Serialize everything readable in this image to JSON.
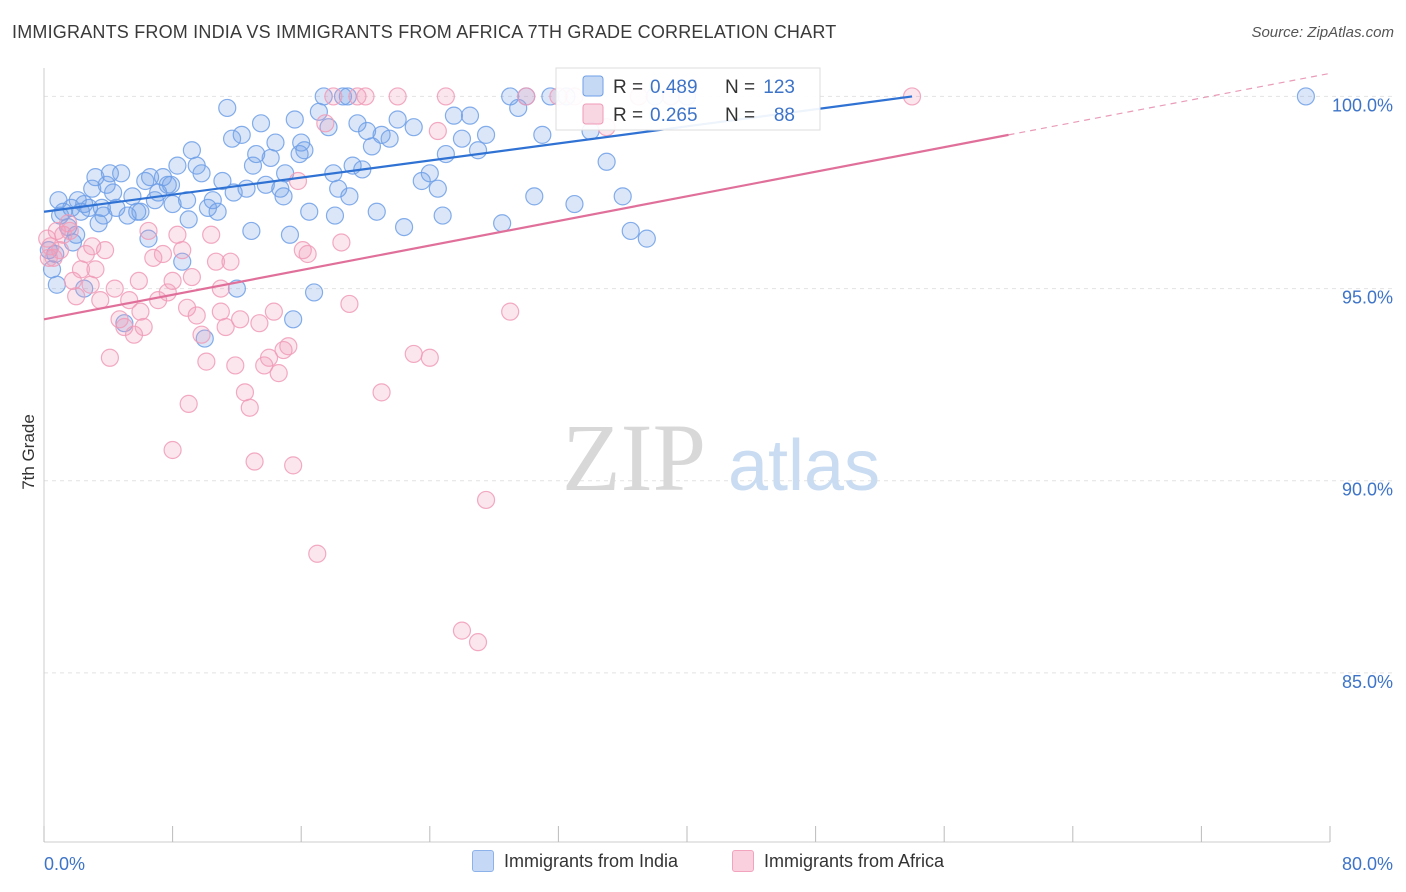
{
  "title": "IMMIGRANTS FROM INDIA VS IMMIGRANTS FROM AFRICA 7TH GRADE CORRELATION CHART",
  "source": "Source: ZipAtlas.com",
  "watermark": {
    "zip": "ZIP",
    "atlas": "atlas"
  },
  "chart_data": {
    "type": "scatter",
    "ylabel": "7th Grade",
    "xlim": [
      0,
      80
    ],
    "ylim": [
      80.6,
      101.0
    ],
    "x_tick_labels": [
      "0.0%",
      "80.0%"
    ],
    "y_ticks": [
      {
        "value": 100,
        "label": "100.0%"
      },
      {
        "value": 95,
        "label": "95.0%"
      },
      {
        "value": 90,
        "label": "90.0%"
      },
      {
        "value": 85,
        "label": "85.0%"
      }
    ],
    "grid": true,
    "legend_position": "bottom",
    "stats": [
      {
        "r_label": "R =",
        "r_value": "0.489",
        "n_label": "N =",
        "n_value": "123"
      },
      {
        "r_label": "R =",
        "r_value": "0.265",
        "n_label": "N =",
        "n_value": "88"
      }
    ],
    "series": [
      {
        "name": "Immigrants from India",
        "color": "#6f9fe6",
        "line_color": "#2f72d4",
        "trend": {
          "x0": 0,
          "y0": 97.0,
          "x1": 54,
          "y1": 100.0,
          "dash_to_x": 54
        },
        "points": [
          [
            0.3,
            96.0
          ],
          [
            0.5,
            95.5
          ],
          [
            0.7,
            95.9
          ],
          [
            0.8,
            95.1
          ],
          [
            1.0,
            96.9
          ],
          [
            1.2,
            97.0
          ],
          [
            1.5,
            96.6
          ],
          [
            1.7,
            97.1
          ],
          [
            2.0,
            96.4
          ],
          [
            2.1,
            97.3
          ],
          [
            2.3,
            97.0
          ],
          [
            2.5,
            97.2
          ],
          [
            2.8,
            97.1
          ],
          [
            3.0,
            97.6
          ],
          [
            3.2,
            97.9
          ],
          [
            3.4,
            96.7
          ],
          [
            3.6,
            97.1
          ],
          [
            3.9,
            97.7
          ],
          [
            4.1,
            98.0
          ],
          [
            4.3,
            97.5
          ],
          [
            4.5,
            97.1
          ],
          [
            4.8,
            98.0
          ],
          [
            5.2,
            96.9
          ],
          [
            5.5,
            97.4
          ],
          [
            5.8,
            97.0
          ],
          [
            6.0,
            97.0
          ],
          [
            6.3,
            97.8
          ],
          [
            6.6,
            97.9
          ],
          [
            6.9,
            97.3
          ],
          [
            7.1,
            97.5
          ],
          [
            7.4,
            97.9
          ],
          [
            7.7,
            97.7
          ],
          [
            8.0,
            97.2
          ],
          [
            8.3,
            98.2
          ],
          [
            8.6,
            95.7
          ],
          [
            8.9,
            97.3
          ],
          [
            9.2,
            98.6
          ],
          [
            9.5,
            98.2
          ],
          [
            9.8,
            98.0
          ],
          [
            10.2,
            97.1
          ],
          [
            10.5,
            97.3
          ],
          [
            10.8,
            97.0
          ],
          [
            11.1,
            97.8
          ],
          [
            11.4,
            99.7
          ],
          [
            11.7,
            98.9
          ],
          [
            12.0,
            95.0
          ],
          [
            12.3,
            99.0
          ],
          [
            12.6,
            97.6
          ],
          [
            12.9,
            96.5
          ],
          [
            13.2,
            98.5
          ],
          [
            13.5,
            99.3
          ],
          [
            13.8,
            97.7
          ],
          [
            14.1,
            98.4
          ],
          [
            14.4,
            98.8
          ],
          [
            14.7,
            97.6
          ],
          [
            15.0,
            98.0
          ],
          [
            15.3,
            96.4
          ],
          [
            15.6,
            99.4
          ],
          [
            15.9,
            98.5
          ],
          [
            16.2,
            98.6
          ],
          [
            16.5,
            97.0
          ],
          [
            16.8,
            94.9
          ],
          [
            17.1,
            99.6
          ],
          [
            17.4,
            100.0
          ],
          [
            17.7,
            99.2
          ],
          [
            18.0,
            98.0
          ],
          [
            18.3,
            97.6
          ],
          [
            18.6,
            100.0
          ],
          [
            18.9,
            100.0
          ],
          [
            19.2,
            98.2
          ],
          [
            19.5,
            99.3
          ],
          [
            19.8,
            98.1
          ],
          [
            20.1,
            99.1
          ],
          [
            20.4,
            98.7
          ],
          [
            20.7,
            97.0
          ],
          [
            21.0,
            99.0
          ],
          [
            22.0,
            99.4
          ],
          [
            22.4,
            96.6
          ],
          [
            23.0,
            99.2
          ],
          [
            23.5,
            97.8
          ],
          [
            24.0,
            98.0
          ],
          [
            24.5,
            97.6
          ],
          [
            25.0,
            98.5
          ],
          [
            25.5,
            99.5
          ],
          [
            26.0,
            98.9
          ],
          [
            26.5,
            99.5
          ],
          [
            27.5,
            99.0
          ],
          [
            28.5,
            96.7
          ],
          [
            29.0,
            100.0
          ],
          [
            29.5,
            99.7
          ],
          [
            30.0,
            100.0
          ],
          [
            30.5,
            97.4
          ],
          [
            31.0,
            99.0
          ],
          [
            31.5,
            100.0
          ],
          [
            32.5,
            100.0
          ],
          [
            33.0,
            97.2
          ],
          [
            34.0,
            99.1
          ],
          [
            35.0,
            98.3
          ],
          [
            36.0,
            97.4
          ],
          [
            36.5,
            96.5
          ],
          [
            37.5,
            96.3
          ],
          [
            38.0,
            100.0
          ],
          [
            39.0,
            100.0
          ],
          [
            40.0,
            100.0
          ],
          [
            5.0,
            94.1
          ],
          [
            10.0,
            93.7
          ],
          [
            15.5,
            94.2
          ],
          [
            78.5,
            100.0
          ],
          [
            2.5,
            95.0
          ],
          [
            6.5,
            96.3
          ],
          [
            9.0,
            96.8
          ],
          [
            11.8,
            97.5
          ],
          [
            14.9,
            97.4
          ],
          [
            18.1,
            96.9
          ],
          [
            21.5,
            98.9
          ],
          [
            24.8,
            96.9
          ],
          [
            27.0,
            98.6
          ],
          [
            0.9,
            97.3
          ],
          [
            1.8,
            96.2
          ],
          [
            3.7,
            96.9
          ],
          [
            7.9,
            97.7
          ],
          [
            13.0,
            98.2
          ],
          [
            16.0,
            98.8
          ],
          [
            19.0,
            97.4
          ]
        ]
      },
      {
        "name": "Immigrants from Africa",
        "color": "#f09bb7",
        "line_color": "#e0709a",
        "trend": {
          "x0": 0,
          "y0": 94.2,
          "x1": 60,
          "y1": 99.0,
          "dash_to_x": 80
        },
        "points": [
          [
            0.2,
            96.3
          ],
          [
            0.4,
            96.1
          ],
          [
            0.6,
            95.8
          ],
          [
            0.8,
            96.5
          ],
          [
            1.0,
            96.0
          ],
          [
            1.2,
            96.4
          ],
          [
            1.5,
            96.7
          ],
          [
            1.8,
            95.2
          ],
          [
            2.0,
            94.8
          ],
          [
            2.3,
            95.5
          ],
          [
            2.6,
            95.9
          ],
          [
            2.9,
            95.1
          ],
          [
            3.2,
            95.5
          ],
          [
            3.5,
            94.7
          ],
          [
            3.8,
            96.0
          ],
          [
            4.1,
            93.2
          ],
          [
            4.4,
            95.0
          ],
          [
            4.7,
            94.2
          ],
          [
            5.0,
            94.0
          ],
          [
            5.3,
            94.7
          ],
          [
            5.6,
            93.8
          ],
          [
            5.9,
            95.2
          ],
          [
            6.2,
            94.0
          ],
          [
            6.5,
            96.5
          ],
          [
            6.8,
            95.8
          ],
          [
            7.1,
            94.7
          ],
          [
            7.4,
            95.9
          ],
          [
            7.7,
            94.9
          ],
          [
            8.0,
            95.2
          ],
          [
            8.3,
            96.4
          ],
          [
            8.6,
            96.0
          ],
          [
            8.9,
            94.5
          ],
          [
            9.2,
            95.3
          ],
          [
            9.5,
            94.3
          ],
          [
            9.8,
            93.8
          ],
          [
            10.1,
            93.1
          ],
          [
            10.4,
            96.4
          ],
          [
            10.7,
            95.7
          ],
          [
            11.0,
            94.4
          ],
          [
            11.3,
            94.0
          ],
          [
            11.6,
            95.7
          ],
          [
            11.9,
            93.0
          ],
          [
            12.2,
            94.2
          ],
          [
            12.5,
            92.3
          ],
          [
            12.8,
            91.9
          ],
          [
            13.1,
            90.5
          ],
          [
            13.4,
            94.1
          ],
          [
            13.7,
            93.0
          ],
          [
            14.0,
            93.2
          ],
          [
            14.3,
            94.4
          ],
          [
            14.6,
            92.8
          ],
          [
            14.9,
            93.4
          ],
          [
            15.2,
            93.5
          ],
          [
            15.5,
            90.4
          ],
          [
            15.8,
            97.8
          ],
          [
            16.1,
            96.0
          ],
          [
            16.4,
            95.9
          ],
          [
            17.0,
            88.1
          ],
          [
            17.5,
            99.3
          ],
          [
            18.0,
            100.0
          ],
          [
            18.5,
            96.2
          ],
          [
            19.0,
            94.6
          ],
          [
            19.5,
            100.0
          ],
          [
            20.0,
            100.0
          ],
          [
            21.0,
            92.3
          ],
          [
            22.0,
            100.0
          ],
          [
            23.0,
            93.3
          ],
          [
            24.0,
            93.2
          ],
          [
            24.5,
            99.1
          ],
          [
            25.0,
            100.0
          ],
          [
            26.0,
            86.1
          ],
          [
            27.0,
            85.8
          ],
          [
            27.5,
            89.5
          ],
          [
            29.0,
            94.4
          ],
          [
            30.0,
            100.0
          ],
          [
            32.0,
            100.0
          ],
          [
            33.0,
            100.0
          ],
          [
            35.0,
            99.2
          ],
          [
            37.0,
            100.0
          ],
          [
            39.0,
            100.0
          ],
          [
            54.0,
            100.0
          ],
          [
            8.0,
            90.8
          ],
          [
            9.0,
            92.0
          ],
          [
            11.0,
            95.0
          ],
          [
            0.3,
            95.8
          ],
          [
            1.6,
            96.5
          ],
          [
            3.0,
            96.1
          ],
          [
            6.0,
            94.4
          ]
        ]
      }
    ]
  }
}
